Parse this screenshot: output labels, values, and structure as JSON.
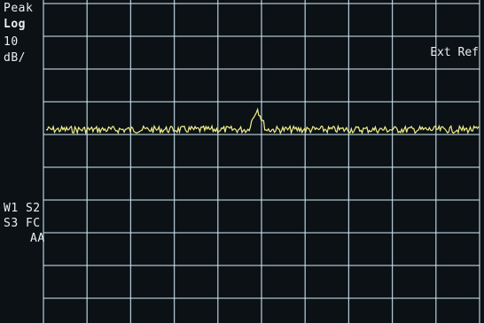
{
  "screen": {
    "scale_mode": "Peak",
    "scale_type": "Log",
    "scale_per_div_value": "10",
    "scale_per_div_unit": "dB/",
    "reference": "Ext Ref",
    "trace_flags": {
      "line1": "W1 S2",
      "line2": "S3 FC",
      "line3": "AA"
    }
  },
  "colors": {
    "background": "#0b1114",
    "graticule": "#c9e3f4",
    "trace": "#f2f08a",
    "text": "#e8f0f2"
  },
  "graticule": {
    "columns": 10,
    "rows": 10,
    "grid": true
  },
  "trace": {
    "type": "line",
    "x_points": 120,
    "noise_floor_div_from_top": 3.85,
    "peak": {
      "x_fraction": 0.49,
      "height_div": 0.3
    }
  }
}
